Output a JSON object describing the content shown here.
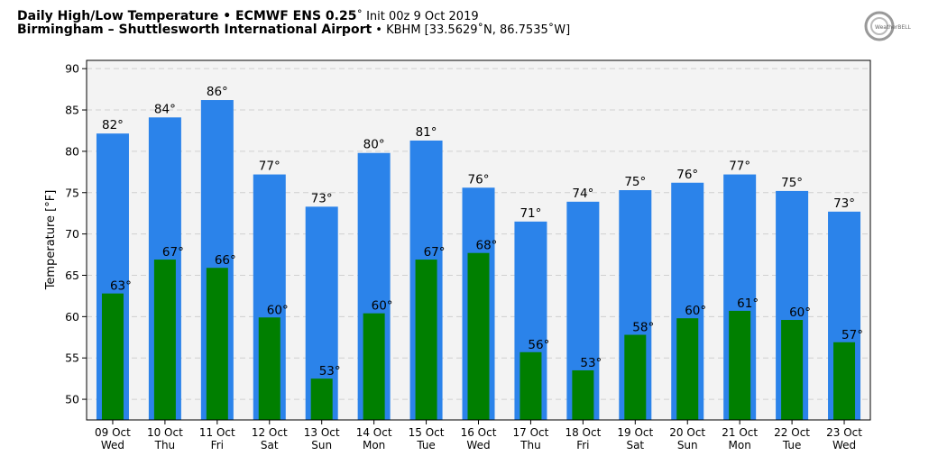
{
  "header": {
    "title_bold": "Daily High/Low Temperature • ECMWF ENS 0.25",
    "title_rest": "˚ Init 00z 9 Oct 2019",
    "subtitle_bold": "Birmingham – Shuttlesworth International Airport",
    "subtitle_rest": " • KBHM [33.5629˚N, 86.7535˚W]",
    "logo_text": "WeatherBELL"
  },
  "chart_data": {
    "type": "bar",
    "title": "Daily High/Low Temperature • ECMWF ENS 0.25˚ Init 00z 9 Oct 2019",
    "xlabel": "",
    "ylabel": "Temperature [°F]",
    "ylim": [
      47.5,
      91
    ],
    "yticks": [
      50,
      55,
      60,
      65,
      70,
      75,
      80,
      85,
      90
    ],
    "grid": true,
    "categories": [
      "09 Oct\nWed",
      "10 Oct\nThu",
      "11 Oct\nFri",
      "12 Oct\nSat",
      "13 Oct\nSun",
      "14 Oct\nMon",
      "15 Oct\nTue",
      "16 Oct\nWed",
      "17 Oct\nThu",
      "18 Oct\nFri",
      "19 Oct\nSat",
      "20 Oct\nSun",
      "21 Oct\nMon",
      "22 Oct\nTue",
      "23 Oct\nWed"
    ],
    "series": [
      {
        "name": "High",
        "color": "#2b83ea",
        "values": [
          82.15,
          84.1,
          86.2,
          77.2,
          73.3,
          79.8,
          81.3,
          75.6,
          71.5,
          73.9,
          75.3,
          76.2,
          77.2,
          75.2,
          72.7
        ],
        "labels": [
          "82°",
          "84°",
          "86°",
          "77°",
          "73°",
          "80°",
          "81°",
          "76°",
          "71°",
          "74°",
          "75°",
          "76°",
          "77°",
          "75°",
          "73°"
        ]
      },
      {
        "name": "Low",
        "color": "#007f00",
        "values": [
          62.8,
          66.9,
          65.9,
          59.9,
          52.5,
          60.4,
          66.9,
          67.7,
          55.7,
          53.5,
          57.8,
          59.8,
          60.7,
          59.6,
          56.9
        ],
        "labels": [
          "63°",
          "67°",
          "66°",
          "60°",
          "53°",
          "60°",
          "67°",
          "68°",
          "56°",
          "53°",
          "58°",
          "60°",
          "61°",
          "60°",
          "57°"
        ]
      }
    ]
  }
}
